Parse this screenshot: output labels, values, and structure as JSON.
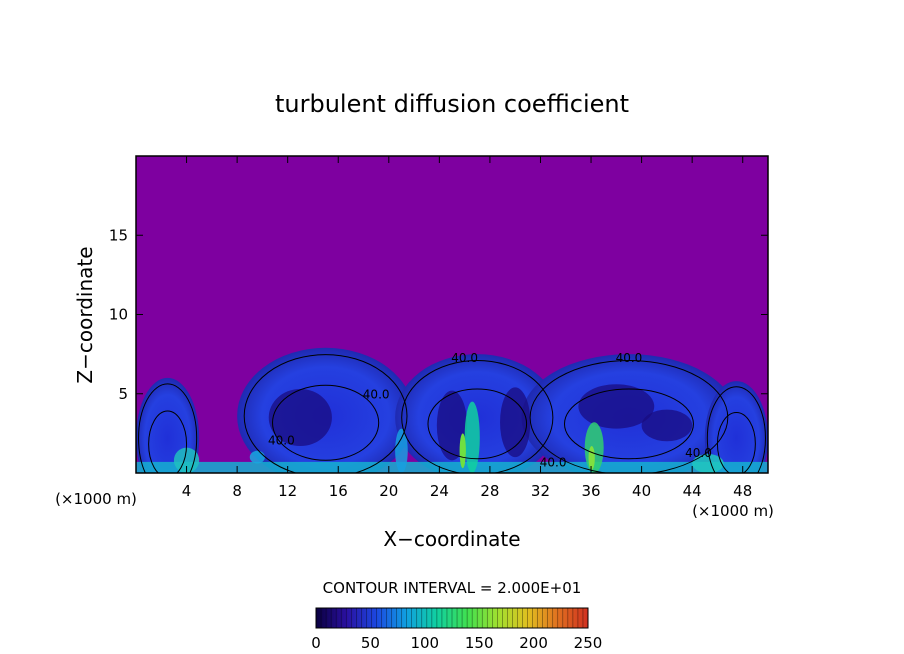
{
  "chart_data": {
    "type": "heatmap",
    "title": "turbulent diffusion coefficient",
    "xlabel": "X−coordinate",
    "ylabel": "Z−coordinate",
    "x_unit_left": "(×1000 m)",
    "x_unit_right": "(×1000 m)",
    "xlim": [
      0,
      50
    ],
    "ylim": [
      0,
      20
    ],
    "xticks": [
      4,
      8,
      12,
      16,
      20,
      24,
      28,
      32,
      36,
      40,
      44,
      48
    ],
    "yticks": [
      5,
      10,
      15
    ],
    "contour_interval_text": "CONTOUR INTERVAL = 2.000E+01",
    "contour_labels": [
      {
        "text": "40.0",
        "x": 11.5,
        "z": 1.8
      },
      {
        "text": "40.0",
        "x": 19.0,
        "z": 4.7
      },
      {
        "text": "40.0",
        "x": 26.0,
        "z": 7.0
      },
      {
        "text": "40.0",
        "x": 39.0,
        "z": 7.0
      },
      {
        "text": "40.0",
        "x": 33.0,
        "z": 0.4
      },
      {
        "text": "40.0",
        "x": 44.5,
        "z": 1.0
      }
    ],
    "colorbar": {
      "min": 0,
      "max": 250,
      "tick_labels": [
        "0",
        "50",
        "100",
        "150",
        "200",
        "250"
      ],
      "colors": [
        "#0a0040",
        "#2a10a0",
        "#1c48e0",
        "#10a0e0",
        "#10d0a0",
        "#40e050",
        "#a0e030",
        "#e0c020",
        "#e07020",
        "#d03020"
      ]
    },
    "background_color": "#7e00a0"
  }
}
